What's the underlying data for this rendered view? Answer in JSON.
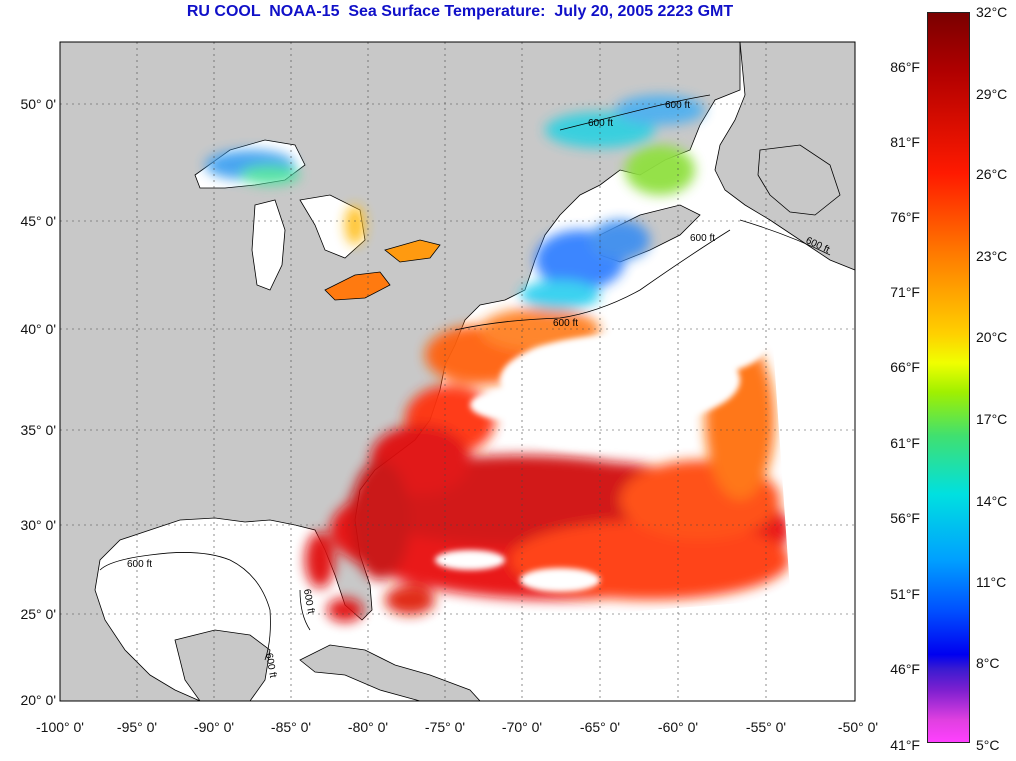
{
  "title": "RU COOL  NOAA-15  Sea Surface Temperature:  July 20, 2005 2223 GMT",
  "latitude_labels": [
    "50° 0'",
    "45° 0'",
    "40° 0'",
    "35° 0'",
    "30° 0'",
    "25° 0'",
    "20° 0'"
  ],
  "longitude_labels": [
    "-100° 0'",
    "-95° 0'",
    "-90° 0'",
    "-85° 0'",
    "-80° 0'",
    "-75° 0'",
    "-70° 0'",
    "-65° 0'",
    "-60° 0'",
    "-55° 0'",
    "-50° 0'"
  ],
  "colorbar": {
    "fahrenheit_labels": [
      "86°F",
      "81°F",
      "76°F",
      "71°F",
      "66°F",
      "61°F",
      "56°F",
      "51°F",
      "46°F",
      "41°F"
    ],
    "celsius_labels": [
      "32°C",
      "29°C",
      "26°C",
      "23°C",
      "20°C",
      "17°C",
      "14°C",
      "11°C",
      "8°C",
      "5°C"
    ]
  },
  "contour_labels": [
    "600 ft",
    "600 ft",
    "600 ft",
    "600 ft",
    "600 ft",
    "600 ft",
    "600 ft",
    "600 ft"
  ],
  "colors": {
    "land": "#c8c8c8",
    "no_data": "#ffffff",
    "title": "#1010c8"
  }
}
